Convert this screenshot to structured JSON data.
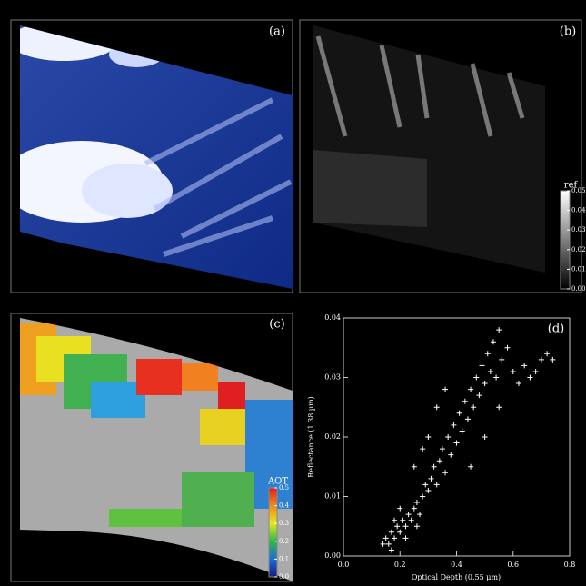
{
  "panels": [
    {
      "label": "(a)"
    },
    {
      "label": "(b)",
      "colorbar": {
        "title": "ref",
        "ticks": [
          {
            "value": 0,
            "label": "0.00"
          },
          0.01,
          0.02,
          0.03,
          0.04,
          0.05
        ]
      }
    },
    {
      "label": "(c)",
      "colorbar": {
        "title": "AOT",
        "ticks": [
          {
            "value": 0,
            "label": "0.0"
          },
          0.1,
          0.2,
          0.3,
          0.4,
          0.5
        ]
      }
    }
  ],
  "chart_data": {
    "type": "scatter",
    "label": "(d)",
    "x_label": "Optical Depth (0.55 µm)",
    "y_label": "Reflectance (1.38 µm)",
    "xlim": [
      0,
      0.8
    ],
    "ylim": [
      0,
      0.04
    ],
    "xticks": [
      {
        "value": 0,
        "label": "0.0"
      },
      0.2,
      0.4,
      0.6,
      0.8
    ],
    "yticks": [
      {
        "value": 0,
        "label": "0.00"
      },
      0.01,
      0.02,
      0.03,
      0.04
    ],
    "color": "#ffffff",
    "x": [
      0.14,
      0.15,
      0.16,
      0.17,
      0.18,
      0.19,
      0.2,
      0.21,
      0.22,
      0.23,
      0.24,
      0.25,
      0.26,
      0.27,
      0.28,
      0.29,
      0.3,
      0.31,
      0.32,
      0.33,
      0.34,
      0.35,
      0.36,
      0.37,
      0.38,
      0.39,
      0.4,
      0.41,
      0.42,
      0.43,
      0.44,
      0.45,
      0.46,
      0.47,
      0.48,
      0.49,
      0.5,
      0.51,
      0.52,
      0.53,
      0.54,
      0.55,
      0.56,
      0.58,
      0.6,
      0.62,
      0.64,
      0.66,
      0.68,
      0.7,
      0.72,
      0.74,
      0.3,
      0.33,
      0.36,
      0.25,
      0.28,
      0.45,
      0.5,
      0.55,
      0.2,
      0.18,
      0.22,
      0.26,
      0.17
    ],
    "y": [
      0.002,
      0.003,
      0.002,
      0.004,
      0.003,
      0.005,
      0.004,
      0.006,
      0.005,
      0.007,
      0.006,
      0.008,
      0.009,
      0.007,
      0.01,
      0.012,
      0.011,
      0.013,
      0.015,
      0.012,
      0.016,
      0.018,
      0.014,
      0.02,
      0.017,
      0.022,
      0.019,
      0.024,
      0.021,
      0.026,
      0.023,
      0.028,
      0.025,
      0.03,
      0.027,
      0.032,
      0.029,
      0.034,
      0.031,
      0.036,
      0.03,
      0.038,
      0.033,
      0.035,
      0.031,
      0.029,
      0.032,
      0.03,
      0.031,
      0.033,
      0.034,
      0.033,
      0.02,
      0.025,
      0.028,
      0.015,
      0.018,
      0.015,
      0.02,
      0.025,
      0.008,
      0.006,
      0.003,
      0.005,
      0.001
    ]
  }
}
